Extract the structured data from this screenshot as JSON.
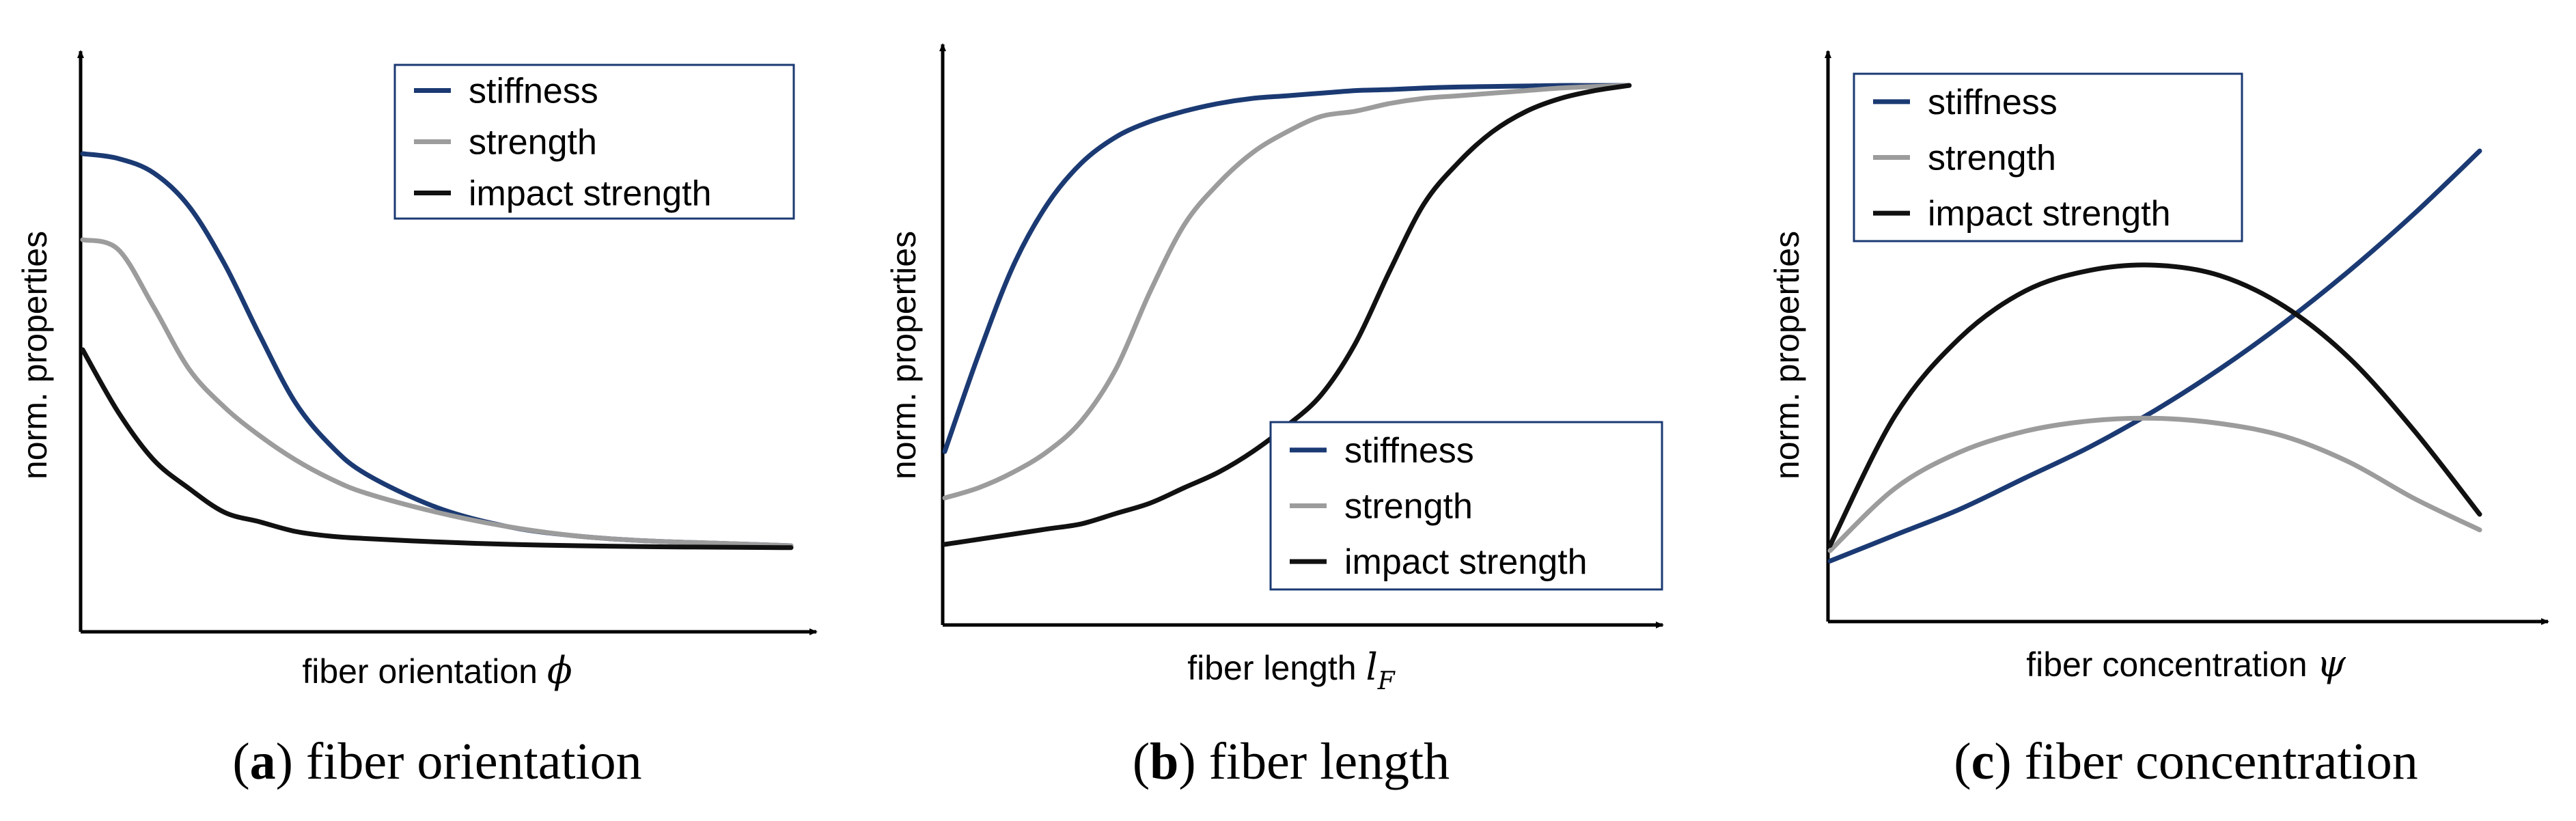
{
  "colors": {
    "stiffness": "#1b3a73",
    "strength": "#9c9c9c",
    "impact_strength": "#111111",
    "legend_border": "#1b3a73",
    "axis": "#000000"
  },
  "chart_data": [
    {
      "type": "line",
      "caption_letter": "a",
      "caption_text": " fiber orientation",
      "xlabel": "fiber orientation ",
      "xvar": "ϕ",
      "xvar_sub": "",
      "ylabel": "norm. properties",
      "xlim": [
        0,
        1
      ],
      "ylim": [
        0,
        1
      ],
      "legend_position": "top-right",
      "x": [
        0,
        0.05,
        0.1,
        0.15,
        0.2,
        0.25,
        0.3,
        0.35,
        0.4,
        0.5,
        0.6,
        0.7,
        0.8,
        0.9,
        1.0
      ],
      "series": [
        {
          "name": "stiffness",
          "color_key": "stiffness",
          "values": [
            0.9,
            0.89,
            0.86,
            0.79,
            0.67,
            0.52,
            0.38,
            0.29,
            0.23,
            0.16,
            0.12,
            0.1,
            0.09,
            0.085,
            0.08
          ]
        },
        {
          "name": "strength",
          "color_key": "strength",
          "values": [
            0.72,
            0.7,
            0.58,
            0.45,
            0.37,
            0.31,
            0.26,
            0.22,
            0.19,
            0.15,
            0.12,
            0.1,
            0.09,
            0.085,
            0.08
          ]
        },
        {
          "name": "impact strength",
          "color_key": "impact_strength",
          "values": [
            0.49,
            0.36,
            0.26,
            0.2,
            0.15,
            0.13,
            0.11,
            0.1,
            0.095,
            0.088,
            0.083,
            0.08,
            0.078,
            0.077,
            0.076
          ]
        }
      ]
    },
    {
      "type": "line",
      "caption_letter": "b",
      "caption_text": " fiber length",
      "xlabel": "fiber length ",
      "xvar": "l",
      "xvar_sub": "F",
      "ylabel": "norm. properties",
      "xlim": [
        0,
        1
      ],
      "ylim": [
        0,
        1
      ],
      "legend_position": "bottom-right",
      "x": [
        0,
        0.05,
        0.1,
        0.15,
        0.2,
        0.25,
        0.3,
        0.35,
        0.4,
        0.45,
        0.5,
        0.55,
        0.6,
        0.65,
        0.7,
        0.75,
        0.8,
        0.85,
        0.9,
        0.95,
        1.0
      ],
      "series": [
        {
          "name": "stiffness",
          "color_key": "stiffness",
          "values": [
            0.27,
            0.46,
            0.63,
            0.75,
            0.83,
            0.88,
            0.91,
            0.93,
            0.945,
            0.955,
            0.96,
            0.965,
            0.97,
            0.972,
            0.975,
            0.977,
            0.978,
            0.979,
            0.98,
            0.98,
            0.98
          ]
        },
        {
          "name": "strength",
          "color_key": "strength",
          "values": [
            0.18,
            0.2,
            0.23,
            0.27,
            0.33,
            0.43,
            0.58,
            0.71,
            0.79,
            0.85,
            0.89,
            0.92,
            0.93,
            0.945,
            0.955,
            0.96,
            0.965,
            0.97,
            0.975,
            0.978,
            0.98
          ]
        },
        {
          "name": "impact strength",
          "color_key": "impact_strength",
          "values": [
            0.09,
            0.1,
            0.11,
            0.12,
            0.13,
            0.15,
            0.17,
            0.2,
            0.23,
            0.27,
            0.32,
            0.38,
            0.48,
            0.62,
            0.75,
            0.83,
            0.89,
            0.93,
            0.955,
            0.97,
            0.98
          ]
        }
      ]
    },
    {
      "type": "line",
      "caption_letter": "c",
      "caption_text": " fiber concentration",
      "xlabel": "fiber concentration ",
      "xvar": "ψ",
      "xvar_sub": "",
      "ylabel": "norm. properties",
      "xlim": [
        0,
        1
      ],
      "ylim": [
        0,
        1
      ],
      "legend_position": "top-left",
      "x": [
        0,
        0.1,
        0.2,
        0.3,
        0.4,
        0.5,
        0.6,
        0.7,
        0.8,
        0.9,
        1.0
      ],
      "series": [
        {
          "name": "stiffness",
          "color_key": "stiffness",
          "values": [
            0.11,
            0.16,
            0.21,
            0.27,
            0.33,
            0.4,
            0.48,
            0.57,
            0.67,
            0.78,
            0.9
          ]
        },
        {
          "name": "strength",
          "color_key": "strength",
          "values": [
            0.13,
            0.25,
            0.32,
            0.36,
            0.38,
            0.385,
            0.375,
            0.35,
            0.3,
            0.23,
            0.17
          ]
        },
        {
          "name": "impact strength",
          "color_key": "impact_strength",
          "values": [
            0.14,
            0.39,
            0.54,
            0.63,
            0.67,
            0.68,
            0.66,
            0.6,
            0.5,
            0.36,
            0.2
          ]
        }
      ]
    }
  ]
}
